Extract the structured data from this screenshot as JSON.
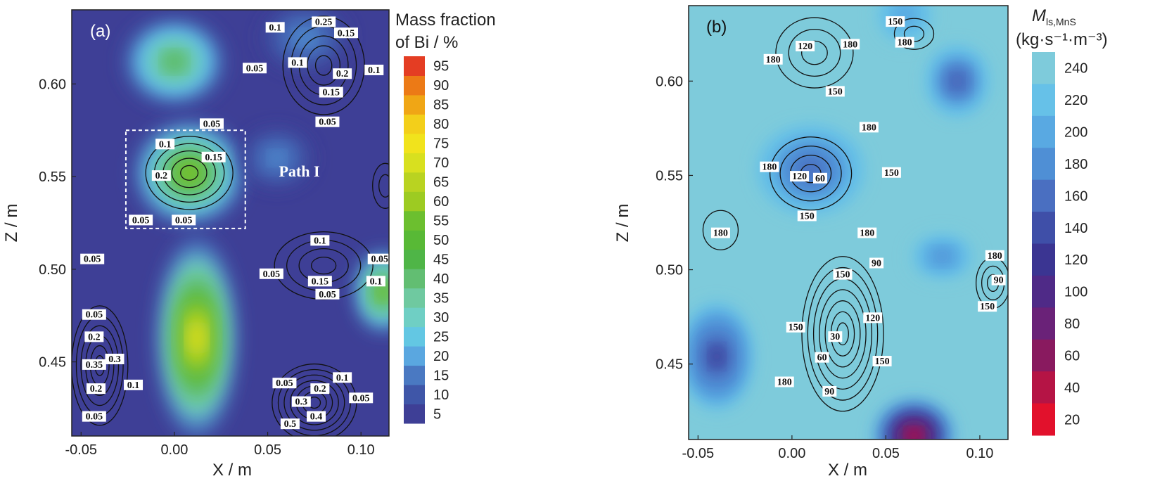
{
  "chart_data": [
    {
      "type": "heatmap",
      "panel_label": "(a)",
      "xlabel": "X / m",
      "ylabel": "Z / m",
      "xlim": [
        -0.055,
        0.115
      ],
      "ylim": [
        0.41,
        0.64
      ],
      "xticks": [
        -0.05,
        0.0,
        0.05,
        0.1
      ],
      "xtick_labels": [
        "-0.05",
        "0.00",
        "0.05",
        "0.10"
      ],
      "yticks": [
        0.45,
        0.5,
        0.55,
        0.6
      ],
      "ytick_labels": [
        "0.45",
        "0.50",
        "0.55",
        "0.60"
      ],
      "colorbar": {
        "title": [
          "Mass fraction",
          "of Bi / %"
        ],
        "levels": [
          5,
          10,
          15,
          20,
          25,
          30,
          35,
          40,
          45,
          50,
          55,
          60,
          65,
          70,
          75,
          80,
          85,
          90,
          95
        ],
        "colors": [
          "#3e3f96",
          "#3f56a8",
          "#4a79c2",
          "#5aa7e0",
          "#63c7e3",
          "#6fcfc4",
          "#6fc9a0",
          "#62be72",
          "#4fb547",
          "#58b936",
          "#6cbf2f",
          "#9dcb22",
          "#b9d321",
          "#d8e01f",
          "#f1e31c",
          "#f3cf1a",
          "#f0a615",
          "#ec7a16",
          "#e43d23"
        ]
      },
      "background_value": 5,
      "hotspots": [
        {
          "x": 0.0,
          "z": 0.612,
          "peak": 45
        },
        {
          "x": 0.008,
          "z": 0.552,
          "peak": 60
        },
        {
          "x": 0.012,
          "z": 0.463,
          "peak": 75
        },
        {
          "x": 0.112,
          "z": 0.488,
          "peak": 60
        },
        {
          "x": 0.055,
          "z": 0.56,
          "peak": 20
        },
        {
          "x": 0.07,
          "z": 0.625,
          "peak": 20
        }
      ],
      "contour_labels": [
        {
          "text": "0.1",
          "x": 0.054,
          "z": 0.63
        },
        {
          "text": "0.25",
          "x": 0.08,
          "z": 0.633
        },
        {
          "text": "0.15",
          "x": 0.092,
          "z": 0.627
        },
        {
          "text": "0.05",
          "x": 0.043,
          "z": 0.608
        },
        {
          "text": "0.1",
          "x": 0.066,
          "z": 0.611
        },
        {
          "text": "0.2",
          "x": 0.09,
          "z": 0.605
        },
        {
          "text": "0.15",
          "x": 0.084,
          "z": 0.595
        },
        {
          "text": "0.1",
          "x": 0.107,
          "z": 0.607
        },
        {
          "text": "0.05",
          "x": 0.082,
          "z": 0.579
        },
        {
          "text": "0.05",
          "x": 0.02,
          "z": 0.578
        },
        {
          "text": "0.1",
          "x": -0.005,
          "z": 0.567
        },
        {
          "text": "0.15",
          "x": 0.021,
          "z": 0.56
        },
        {
          "text": "0.2",
          "x": -0.007,
          "z": 0.55
        },
        {
          "text": "0.05",
          "x": -0.018,
          "z": 0.526
        },
        {
          "text": "0.05",
          "x": 0.005,
          "z": 0.526
        },
        {
          "text": "0.05",
          "x": -0.044,
          "z": 0.505
        },
        {
          "text": "0.1",
          "x": 0.078,
          "z": 0.515
        },
        {
          "text": "0.05",
          "x": 0.052,
          "z": 0.497
        },
        {
          "text": "0.15",
          "x": 0.078,
          "z": 0.493
        },
        {
          "text": "0.05",
          "x": 0.082,
          "z": 0.486
        },
        {
          "text": "0.05",
          "x": 0.11,
          "z": 0.505
        },
        {
          "text": "0.1",
          "x": 0.108,
          "z": 0.493
        },
        {
          "text": "0.05",
          "x": -0.043,
          "z": 0.475
        },
        {
          "text": "0.2",
          "x": -0.043,
          "z": 0.463
        },
        {
          "text": "0.35",
          "x": -0.043,
          "z": 0.448
        },
        {
          "text": "0.3",
          "x": -0.032,
          "z": 0.451
        },
        {
          "text": "0.2",
          "x": -0.042,
          "z": 0.435
        },
        {
          "text": "0.1",
          "x": -0.022,
          "z": 0.437
        },
        {
          "text": "0.05",
          "x": -0.043,
          "z": 0.42
        },
        {
          "text": "0.05",
          "x": 0.059,
          "z": 0.438
        },
        {
          "text": "0.3",
          "x": 0.068,
          "z": 0.428
        },
        {
          "text": "0.2",
          "x": 0.078,
          "z": 0.435
        },
        {
          "text": "0.1",
          "x": 0.09,
          "z": 0.441
        },
        {
          "text": "0.05",
          "x": 0.1,
          "z": 0.43
        },
        {
          "text": "0.4",
          "x": 0.076,
          "z": 0.42
        },
        {
          "text": "0.5",
          "x": 0.062,
          "z": 0.416
        }
      ],
      "annotation": {
        "text": "Path I",
        "x": 0.056,
        "z": 0.553
      },
      "box": {
        "x0": -0.026,
        "x1": 0.038,
        "z0": 0.522,
        "z1": 0.575
      }
    },
    {
      "type": "heatmap",
      "panel_label": "(b)",
      "xlabel": "X / m",
      "ylabel": "Z / m",
      "xlim": [
        -0.055,
        0.115
      ],
      "ylim": [
        0.41,
        0.64
      ],
      "xticks": [
        -0.05,
        0.0,
        0.05,
        0.1
      ],
      "xtick_labels": [
        "-0.05",
        "0.00",
        "0.05",
        "0.10"
      ],
      "yticks": [
        0.45,
        0.5,
        0.55,
        0.6
      ],
      "ytick_labels": [
        "0.45",
        "0.50",
        "0.55",
        "0.60"
      ],
      "colorbar": {
        "title_symbol": "M",
        "title_subscript": "ls,MnS",
        "title_units": "(kg·s⁻¹·m⁻³)",
        "levels": [
          240,
          220,
          200,
          180,
          160,
          140,
          120,
          100,
          80,
          60,
          40,
          20
        ],
        "colors": [
          "#7ecbdb",
          "#66c1e8",
          "#59a9e2",
          "#4f8fd5",
          "#4a6fc1",
          "#3f4fa8",
          "#3b3592",
          "#4f2a87",
          "#6a2278",
          "#891a5f",
          "#b51445",
          "#e2112c"
        ]
      },
      "background_value": 240,
      "coldspots": [
        {
          "x": 0.01,
          "z": 0.553,
          "min": 150
        },
        {
          "x": -0.04,
          "z": 0.454,
          "min": 120
        },
        {
          "x": 0.065,
          "z": 0.412,
          "min": 20
        },
        {
          "x": 0.088,
          "z": 0.6,
          "min": 140
        },
        {
          "x": 0.08,
          "z": 0.507,
          "min": 180
        },
        {
          "x": 0.06,
          "z": 0.635,
          "min": 190
        }
      ],
      "contour_labels": [
        {
          "text": "150",
          "x": 0.055,
          "z": 0.631
        },
        {
          "text": "180",
          "x": 0.06,
          "z": 0.62
        },
        {
          "text": "120",
          "x": 0.007,
          "z": 0.618
        },
        {
          "text": "180",
          "x": 0.031,
          "z": 0.619
        },
        {
          "text": "180",
          "x": -0.01,
          "z": 0.611
        },
        {
          "text": "150",
          "x": 0.023,
          "z": 0.594
        },
        {
          "text": "180",
          "x": 0.041,
          "z": 0.575
        },
        {
          "text": "180",
          "x": -0.012,
          "z": 0.554
        },
        {
          "text": "120",
          "x": 0.004,
          "z": 0.549
        },
        {
          "text": "60",
          "x": 0.015,
          "z": 0.548
        },
        {
          "text": "150",
          "x": 0.053,
          "z": 0.551
        },
        {
          "text": "150",
          "x": 0.008,
          "z": 0.528
        },
        {
          "text": "180",
          "x": 0.04,
          "z": 0.519
        },
        {
          "text": "180",
          "x": -0.038,
          "z": 0.519
        },
        {
          "text": "90",
          "x": 0.045,
          "z": 0.503
        },
        {
          "text": "150",
          "x": 0.027,
          "z": 0.497
        },
        {
          "text": "120",
          "x": 0.043,
          "z": 0.474
        },
        {
          "text": "30",
          "x": 0.023,
          "z": 0.464
        },
        {
          "text": "150",
          "x": 0.002,
          "z": 0.469
        },
        {
          "text": "60",
          "x": 0.016,
          "z": 0.453
        },
        {
          "text": "150",
          "x": 0.048,
          "z": 0.451
        },
        {
          "text": "90",
          "x": 0.02,
          "z": 0.435
        },
        {
          "text": "180",
          "x": -0.004,
          "z": 0.44
        },
        {
          "text": "180",
          "x": 0.108,
          "z": 0.507
        },
        {
          "text": "90",
          "x": 0.11,
          "z": 0.494
        },
        {
          "text": "150",
          "x": 0.104,
          "z": 0.48
        }
      ]
    }
  ]
}
